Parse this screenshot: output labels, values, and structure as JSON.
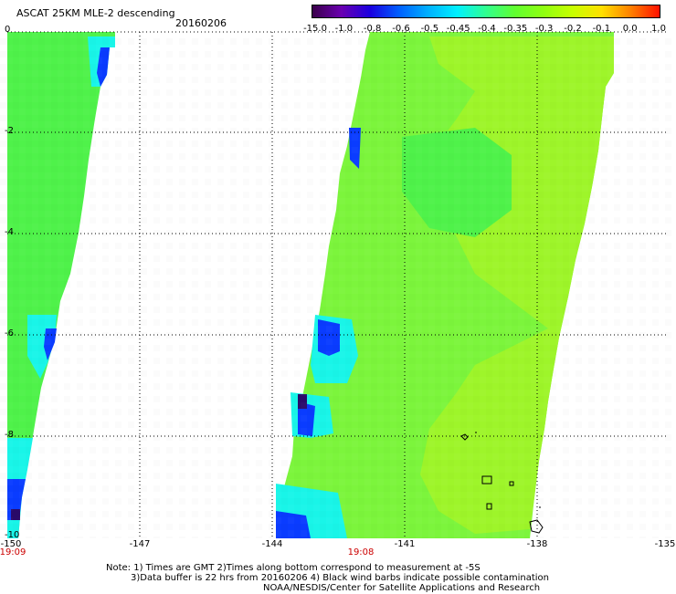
{
  "header": {
    "title": "ASCAT 25KM MLE-2 descending",
    "date": "20160206"
  },
  "colorbar": {
    "tick_labels": [
      "-15.0",
      "-1.0",
      "-0.8",
      "-0.6",
      "-0.5",
      "-0.45",
      "-0.4",
      "-0.35",
      "-0.3",
      "-0.2",
      "-0.1",
      "0.0",
      "1.0"
    ],
    "colors": [
      "#3a004a",
      "#6a00b0",
      "#1a00e0",
      "#0060ff",
      "#00b0ff",
      "#00f0ff",
      "#30ff90",
      "#60ff30",
      "#90ff10",
      "#c8ff00",
      "#ffe000",
      "#ff8000",
      "#ff1000"
    ]
  },
  "axes": {
    "y_labels": [
      "0",
      "-2",
      "-4",
      "-6",
      "-8",
      "-10"
    ],
    "x_labels": [
      "-150",
      "-147",
      "-144",
      "-141",
      "-138",
      "-135"
    ],
    "time_labels": [
      "19:09",
      "19:08"
    ]
  },
  "map": {
    "lon_range": [
      -150,
      -135
    ],
    "lat_range": [
      -10,
      0
    ],
    "swath_colors": {
      "main": "#7cf53c",
      "light": "#9ef52a",
      "green": "#4ff24a",
      "cyan": "#19f5e8",
      "blue": "#0a3cff",
      "purple": "#2a0a6a"
    }
  },
  "notes": {
    "line1": "Note: 1) Times are GMT  2)Times along bottom correspond to measurement at -5S",
    "line2": "3)Data buffer is 22 hrs from 20160206  4) Black wind barbs indicate possible contamination",
    "line3": "NOAA/NESDIS/Center for Satellite Applications and Research"
  }
}
